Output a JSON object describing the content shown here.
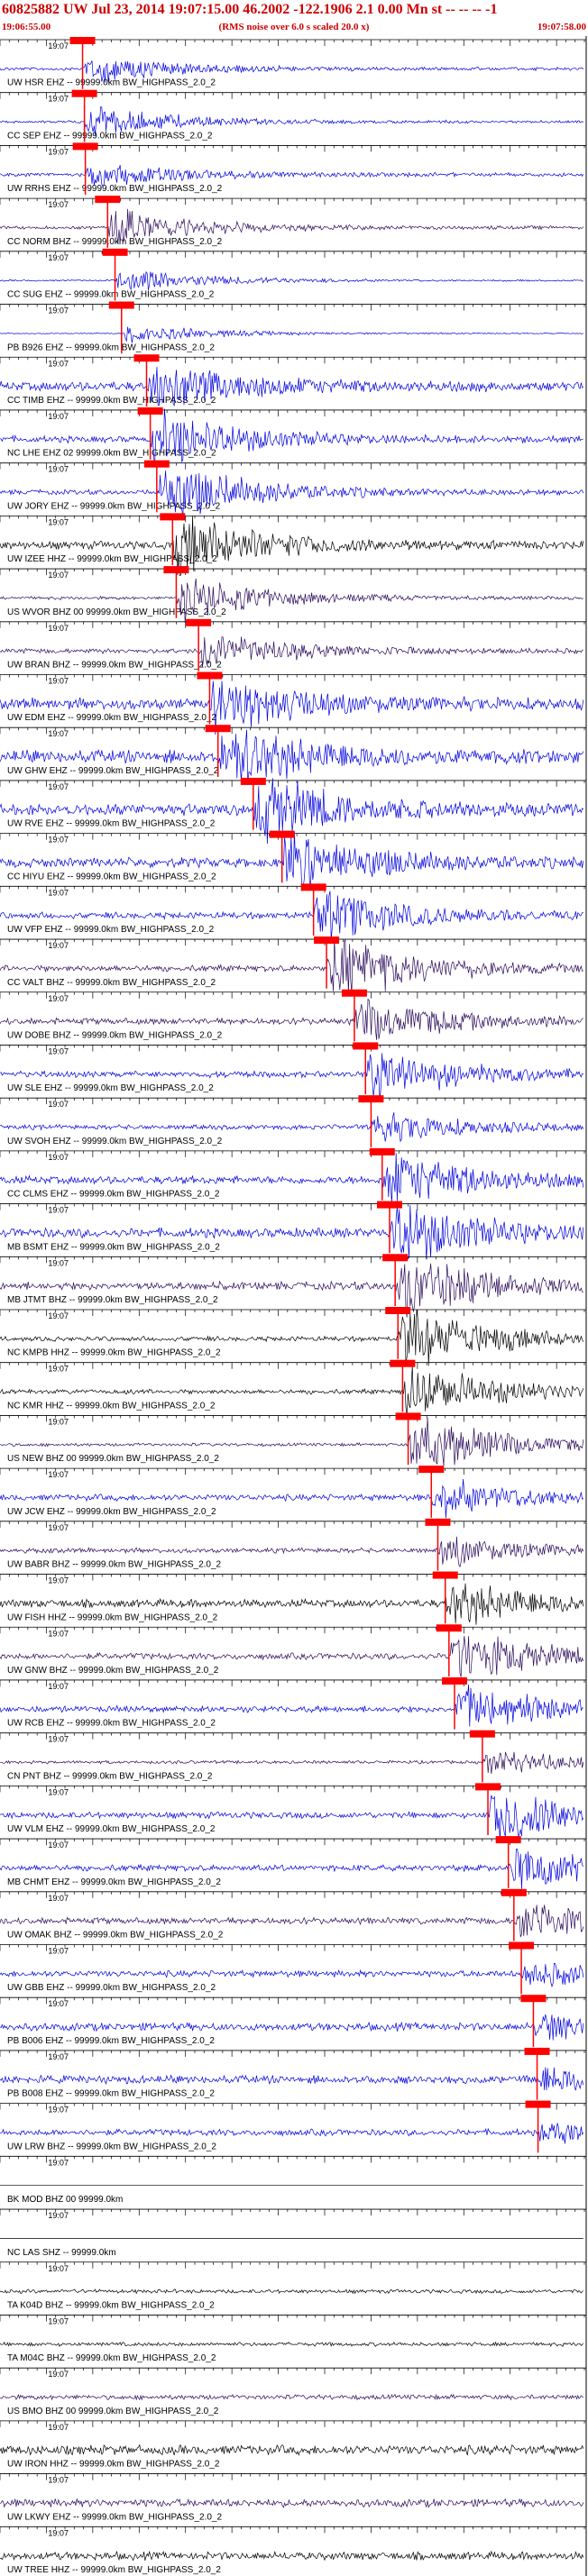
{
  "header": {
    "title": "60825882 UW Jul 23, 2014 19:07:15.00   46.2002 -122.1906  2.1 0.00 Mn st -- -- -- -1",
    "start_time": "19:06:55.00",
    "note": "(RMS noise over 6.0 s scaled 20.0 x)",
    "end_time": "19:07:58.00"
  },
  "chart_data": {
    "type": "line",
    "title": "60825882 UW Jul 23, 2014 19:07:15.00   46.2002 -122.1906  2.1 0.00 Mn st -- -- -- -1",
    "x_range_seconds": [
      0,
      63
    ],
    "tick_label": "19:07",
    "tick_label_seconds": 5,
    "colors": {
      "blue": "#0000dd",
      "black": "#000000",
      "purple": "#2a0a5a",
      "pick": "#ff0000",
      "grid": "#000000"
    },
    "traces": [
      {
        "label": "UW HSR EHZ -- 99999.0km BW_HIGHPASS_2.0_2",
        "pick_s": 8.9,
        "color": "blue",
        "amp": 0.45,
        "noise": 0.1
      },
      {
        "label": "CC SEP EHZ -- 99999.0km BW_HIGHPASS_2.0_2",
        "pick_s": 9.1,
        "color": "blue",
        "amp": 0.5,
        "noise": 0.08
      },
      {
        "label": "UW RRHS EHZ -- 99999.0km BW_HIGHPASS_2.0_2",
        "pick_s": 9.2,
        "color": "blue",
        "amp": 0.4,
        "noise": 0.12
      },
      {
        "label": "CC NORM BHZ -- 99999.0km BW_HIGHPASS_2.0_2",
        "pick_s": 11.6,
        "color": "purple",
        "amp": 0.6,
        "noise": 0.1
      },
      {
        "label": "CC SUG EHZ -- 99999.0km BW_HIGHPASS_2.0_2",
        "pick_s": 12.4,
        "color": "blue",
        "amp": 0.4,
        "noise": 0.05
      },
      {
        "label": "PB B926 EHZ -- 99999.0km BW_HIGHPASS_2.0_2",
        "pick_s": 13.1,
        "color": "blue",
        "amp": 0.3,
        "noise": 0.03
      },
      {
        "label": "CC TIMB EHZ -- 99999.0km BW_HIGHPASS_2.0_2",
        "pick_s": 15.8,
        "color": "blue",
        "amp": 0.8,
        "noise": 0.3
      },
      {
        "label": "NC LHE EHZ 02 99999.0km BW_HIGHPASS_2.0_2",
        "pick_s": 16.2,
        "color": "blue",
        "amp": 0.9,
        "noise": 0.2
      },
      {
        "label": "UW JORY EHZ -- 99999.0km BW_HIGHPASS_2.0_2",
        "pick_s": 16.9,
        "color": "blue",
        "amp": 1.0,
        "noise": 0.15
      },
      {
        "label": "UW IZEE HHZ -- 99999.0km BW_HIGHPASS_2.0_2",
        "pick_s": 18.6,
        "color": "black",
        "amp": 0.9,
        "noise": 0.25
      },
      {
        "label": "US WVOR BHZ 00 99999.0km BW_HIGHPASS_2.0_2",
        "pick_s": 19.0,
        "color": "purple",
        "amp": 0.7,
        "noise": 0.1
      },
      {
        "label": "UW BRAN BHZ -- 99999.0km BW_HIGHPASS_2.0_2",
        "pick_s": 21.4,
        "color": "purple",
        "amp": 0.6,
        "noise": 0.15
      },
      {
        "label": "UW EDM EHZ -- 99999.0km BW_HIGHPASS_2.0_2",
        "pick_s": 22.6,
        "color": "blue",
        "amp": 0.9,
        "noise": 0.35
      },
      {
        "label": "UW GHW EHZ -- 99999.0km BW_HIGHPASS_2.0_2",
        "pick_s": 23.5,
        "color": "blue",
        "amp": 1.0,
        "noise": 0.4
      },
      {
        "label": "UW RVE EHZ -- 99999.0km BW_HIGHPASS_2.0_2",
        "pick_s": 27.3,
        "color": "blue",
        "amp": 1.0,
        "noise": 0.35
      },
      {
        "label": "CC HIYU EHZ -- 99999.0km BW_HIGHPASS_2.0_2",
        "pick_s": 30.4,
        "color": "blue",
        "amp": 1.0,
        "noise": 0.3
      },
      {
        "label": "UW VFP EHZ -- 99999.0km BW_HIGHPASS_2.0_2",
        "pick_s": 33.8,
        "color": "blue",
        "amp": 0.8,
        "noise": 0.2
      },
      {
        "label": "CC VALT BHZ -- 99999.0km BW_HIGHPASS_2.0_2",
        "pick_s": 35.2,
        "color": "purple",
        "amp": 1.0,
        "noise": 0.2
      },
      {
        "label": "UW DOBE BHZ -- 99999.0km BW_HIGHPASS_2.0_2",
        "pick_s": 38.2,
        "color": "purple",
        "amp": 0.7,
        "noise": 0.2
      },
      {
        "label": "UW SLE EHZ -- 99999.0km BW_HIGHPASS_2.0_2",
        "pick_s": 39.4,
        "color": "blue",
        "amp": 0.8,
        "noise": 0.2
      },
      {
        "label": "UW SVOH EHZ -- 99999.0km BW_HIGHPASS_2.0_2",
        "pick_s": 40.0,
        "color": "blue",
        "amp": 0.5,
        "noise": 0.15
      },
      {
        "label": "CC CLMS EHZ -- 99999.0km BW_HIGHPASS_2.0_2",
        "pick_s": 41.2,
        "color": "blue",
        "amp": 0.9,
        "noise": 0.25
      },
      {
        "label": "MB BSMT EHZ -- 99999.0km BW_HIGHPASS_2.0_2",
        "pick_s": 42.0,
        "color": "blue",
        "amp": 1.0,
        "noise": 0.3
      },
      {
        "label": "MB JTMT BHZ -- 99999.0km BW_HIGHPASS_2.0_2",
        "pick_s": 42.6,
        "color": "purple",
        "amp": 1.0,
        "noise": 0.25
      },
      {
        "label": "NC KMPB HHZ -- 99999.0km BW_HIGHPASS_2.0_2",
        "pick_s": 42.9,
        "color": "black",
        "amp": 1.0,
        "noise": 0.15
      },
      {
        "label": "NC KMR HHZ -- 99999.0km BW_HIGHPASS_2.0_2",
        "pick_s": 43.4,
        "color": "black",
        "amp": 0.9,
        "noise": 0.15
      },
      {
        "label": "US NEW BHZ 00 99999.0km BW_HIGHPASS_2.0_2",
        "pick_s": 44.0,
        "color": "purple",
        "amp": 1.0,
        "noise": 0.1
      },
      {
        "label": "UW JCW EHZ -- 99999.0km BW_HIGHPASS_2.0_2",
        "pick_s": 46.5,
        "color": "blue",
        "amp": 0.6,
        "noise": 0.2
      },
      {
        "label": "UW BABR BHZ -- 99999.0km BW_HIGHPASS_2.0_2",
        "pick_s": 47.2,
        "color": "purple",
        "amp": 0.5,
        "noise": 0.15
      },
      {
        "label": "UW FISH HHZ -- 99999.0km BW_HIGHPASS_2.0_2",
        "pick_s": 48.0,
        "color": "black",
        "amp": 0.7,
        "noise": 0.25
      },
      {
        "label": "UW GNW BHZ -- 99999.0km BW_HIGHPASS_2.0_2",
        "pick_s": 48.4,
        "color": "purple",
        "amp": 0.8,
        "noise": 0.2
      },
      {
        "label": "UW RCB EHZ -- 99999.0km BW_HIGHPASS_2.0_2",
        "pick_s": 49.0,
        "color": "blue",
        "amp": 0.8,
        "noise": 0.2
      },
      {
        "label": "CN PNT BHZ -- 99999.0km BW_HIGHPASS_2.0_2",
        "pick_s": 52.0,
        "color": "purple",
        "amp": 0.4,
        "noise": 0.1
      },
      {
        "label": "UW VLM EHZ -- 99999.0km BW_HIGHPASS_2.0_2",
        "pick_s": 52.6,
        "color": "blue",
        "amp": 1.0,
        "noise": 0.2
      },
      {
        "label": "MB CHMT EHZ -- 99999.0km BW_HIGHPASS_2.0_2",
        "pick_s": 54.8,
        "color": "blue",
        "amp": 0.7,
        "noise": 0.2
      },
      {
        "label": "UW OMAK BHZ -- 99999.0km BW_HIGHPASS_2.0_2",
        "pick_s": 55.4,
        "color": "purple",
        "amp": 0.6,
        "noise": 0.2
      },
      {
        "label": "UW GBB EHZ -- 99999.0km BW_HIGHPASS_2.0_2",
        "pick_s": 56.2,
        "color": "blue",
        "amp": 0.4,
        "noise": 0.2
      },
      {
        "label": "PB B006 EHZ -- 99999.0km BW_HIGHPASS_2.0_2",
        "pick_s": 57.5,
        "color": "blue",
        "amp": 0.4,
        "noise": 0.25
      },
      {
        "label": "PB B008 EHZ -- 99999.0km BW_HIGHPASS_2.0_2",
        "pick_s": 57.9,
        "color": "blue",
        "amp": 0.4,
        "noise": 0.25
      },
      {
        "label": "UW LRW BHZ -- 99999.0km BW_HIGHPASS_2.0_2",
        "pick_s": 58.0,
        "color": "blue",
        "amp": 0.3,
        "noise": 0.2
      },
      {
        "label": "BK MOD BHZ 00 99999.0km",
        "pick_s": null,
        "color": "black",
        "amp": 0.0,
        "noise": 0.0
      },
      {
        "label": "NC LAS SHZ -- 99999.0km",
        "pick_s": null,
        "color": "black",
        "amp": 0.0,
        "noise": 0.0
      },
      {
        "label": "TA K04D BHZ -- 99999.0km BW_HIGHPASS_2.0_2",
        "pick_s": null,
        "color": "black",
        "amp": 0.0,
        "noise": 0.12
      },
      {
        "label": "TA M04C BHZ -- 99999.0km BW_HIGHPASS_2.0_2",
        "pick_s": null,
        "color": "black",
        "amp": 0.0,
        "noise": 0.12
      },
      {
        "label": "US BMO BHZ 00 99999.0km BW_HIGHPASS_2.0_2",
        "pick_s": null,
        "color": "purple",
        "amp": 0.0,
        "noise": 0.15
      },
      {
        "label": "UW IRON HHZ -- 99999.0km BW_HIGHPASS_2.0_2",
        "pick_s": null,
        "color": "black",
        "amp": 0.0,
        "noise": 0.3
      },
      {
        "label": "UW LKWY EHZ -- 99999.0km BW_HIGHPASS_2.0_2",
        "pick_s": null,
        "color": "purple",
        "amp": 0.0,
        "noise": 0.25
      },
      {
        "label": "UW TREE HHZ -- 99999.0km BW_HIGHPASS_2.0_2",
        "pick_s": null,
        "color": "black",
        "amp": 0.0,
        "noise": 0.25
      }
    ]
  }
}
